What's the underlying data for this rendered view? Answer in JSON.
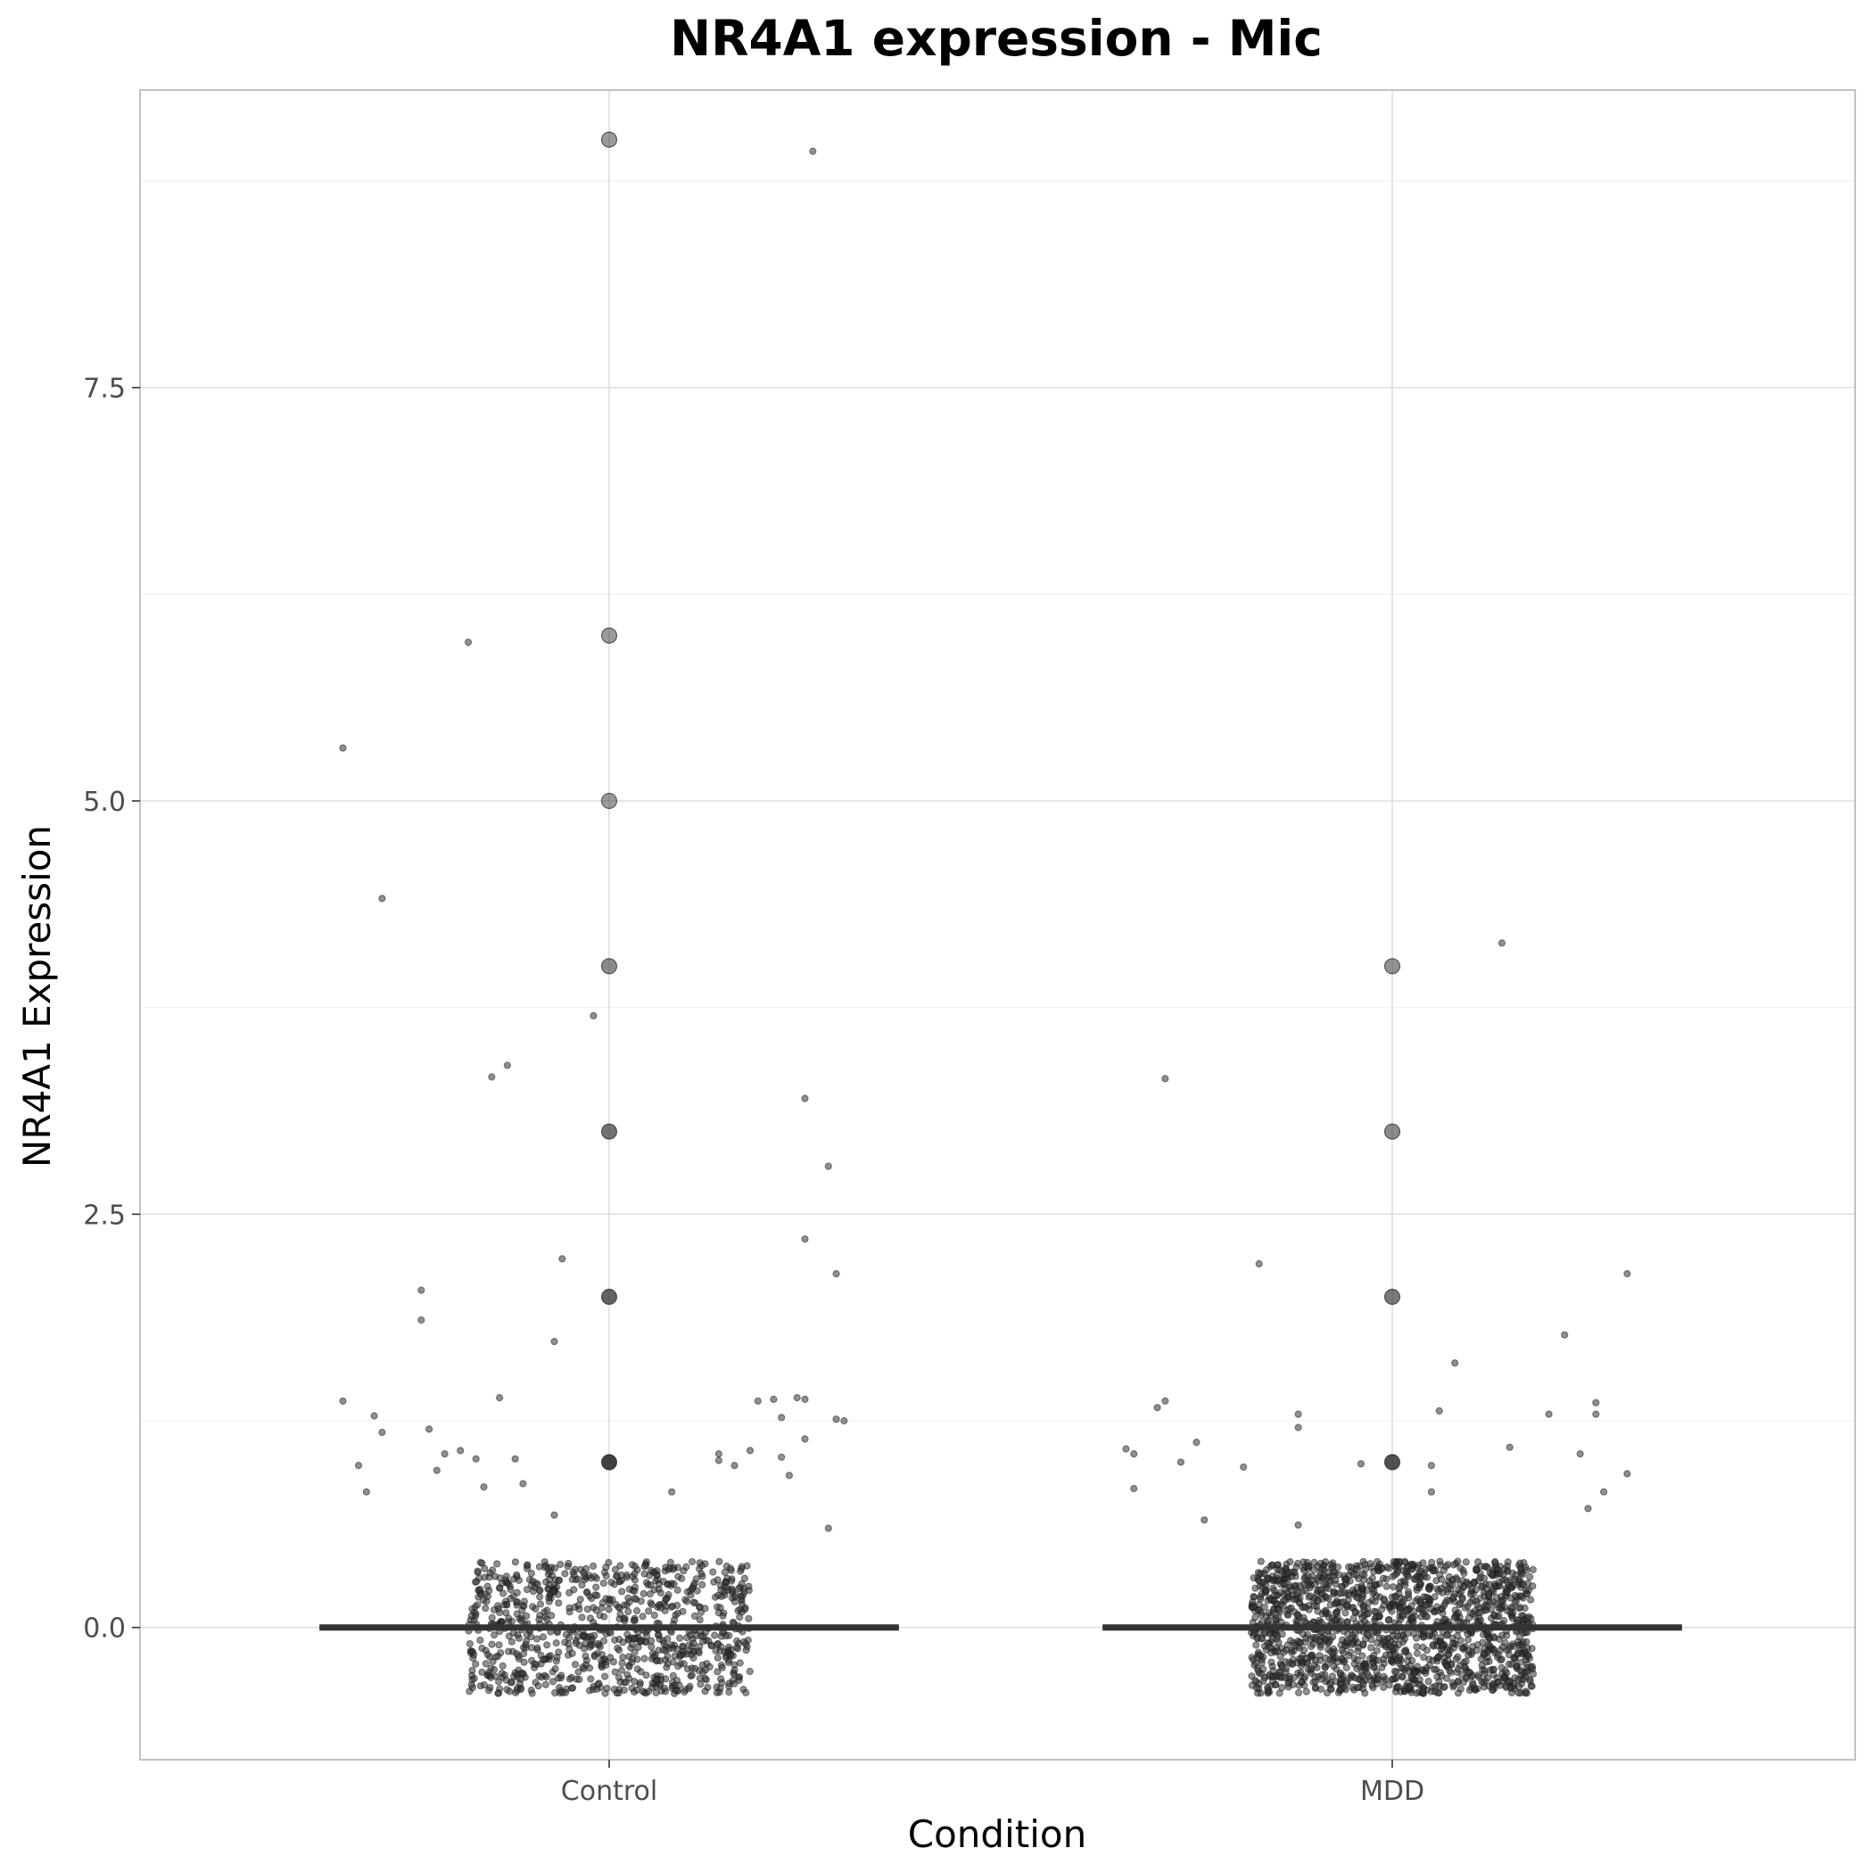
{
  "chart_data": {
    "type": "scatter",
    "title": "NR4A1 expression - Mic",
    "xlabel": "Condition",
    "ylabel": "NR4A1 Expression",
    "categories": [
      "Control",
      "MDD"
    ],
    "ylim": [
      -0.8,
      9.3
    ],
    "yticks": [
      0.0,
      2.5,
      5.0,
      7.5
    ],
    "ytick_labels": [
      "0.0",
      "2.5",
      "5.0",
      "7.5"
    ],
    "grid": true,
    "legend": "none",
    "point_color": "#333333",
    "median_color": "#333333",
    "series": [
      {
        "category": "Control",
        "median": 0,
        "count_points": [
          {
            "y": 0,
            "n": 900
          },
          {
            "y": 1,
            "n": 12
          },
          {
            "y": 2,
            "n": 8
          },
          {
            "y": 3,
            "n": 6
          },
          {
            "y": 4,
            "n": 3
          },
          {
            "y": 5,
            "n": 1
          },
          {
            "y": 6,
            "n": 1
          },
          {
            "y": 9,
            "n": 1
          }
        ],
        "jitter_points": [
          {
            "dx": -0.34,
            "y": 1.37
          },
          {
            "dx": -0.3,
            "y": 1.28
          },
          {
            "dx": -0.29,
            "y": 1.18
          },
          {
            "dx": -0.32,
            "y": 0.98
          },
          {
            "dx": -0.31,
            "y": 0.82
          },
          {
            "dx": -0.23,
            "y": 1.2
          },
          {
            "dx": -0.22,
            "y": 0.95
          },
          {
            "dx": -0.21,
            "y": 1.05
          },
          {
            "dx": -0.19,
            "y": 1.07
          },
          {
            "dx": -0.17,
            "y": 1.02
          },
          {
            "dx": -0.16,
            "y": 0.85
          },
          {
            "dx": -0.14,
            "y": 1.39
          },
          {
            "dx": -0.12,
            "y": 1.02
          },
          {
            "dx": -0.11,
            "y": 0.87
          },
          {
            "dx": -0.07,
            "y": 0.68
          },
          {
            "dx": -0.24,
            "y": 2.04
          },
          {
            "dx": -0.24,
            "y": 1.86
          },
          {
            "dx": -0.06,
            "y": 2.23
          },
          {
            "dx": -0.07,
            "y": 1.73
          },
          {
            "dx": -0.15,
            "y": 3.33
          },
          {
            "dx": -0.13,
            "y": 3.4
          },
          {
            "dx": -0.02,
            "y": 3.7
          },
          {
            "dx": -0.29,
            "y": 4.41
          },
          {
            "dx": -0.34,
            "y": 5.32
          },
          {
            "dx": -0.18,
            "y": 5.96
          },
          {
            "dx": 0.08,
            "y": 0.82
          },
          {
            "dx": 0.14,
            "y": 1.05
          },
          {
            "dx": 0.14,
            "y": 1.01
          },
          {
            "dx": 0.16,
            "y": 0.98
          },
          {
            "dx": 0.18,
            "y": 1.07
          },
          {
            "dx": 0.19,
            "y": 1.37
          },
          {
            "dx": 0.21,
            "y": 1.38
          },
          {
            "dx": 0.22,
            "y": 1.27
          },
          {
            "dx": 0.22,
            "y": 1.03
          },
          {
            "dx": 0.23,
            "y": 0.92
          },
          {
            "dx": 0.24,
            "y": 1.39
          },
          {
            "dx": 0.25,
            "y": 1.38
          },
          {
            "dx": 0.25,
            "y": 1.14
          },
          {
            "dx": 0.28,
            "y": 0.6
          },
          {
            "dx": 0.29,
            "y": 1.26
          },
          {
            "dx": 0.3,
            "y": 1.25
          },
          {
            "dx": 0.25,
            "y": 2.35
          },
          {
            "dx": 0.29,
            "y": 2.14
          },
          {
            "dx": 0.28,
            "y": 2.79
          },
          {
            "dx": 0.25,
            "y": 3.2
          },
          {
            "dx": 0.26,
            "y": 8.93
          }
        ]
      },
      {
        "category": "MDD",
        "median": 0,
        "count_points": [
          {
            "y": 0,
            "n": 1600
          },
          {
            "y": 1,
            "n": 10
          },
          {
            "y": 2,
            "n": 5
          },
          {
            "y": 3,
            "n": 3
          },
          {
            "y": 4,
            "n": 2
          }
        ],
        "jitter_points": [
          {
            "dx": -0.34,
            "y": 1.08
          },
          {
            "dx": -0.33,
            "y": 1.05
          },
          {
            "dx": -0.33,
            "y": 0.84
          },
          {
            "dx": -0.29,
            "y": 1.37
          },
          {
            "dx": -0.3,
            "y": 1.33
          },
          {
            "dx": -0.27,
            "y": 1.0
          },
          {
            "dx": -0.25,
            "y": 1.12
          },
          {
            "dx": -0.24,
            "y": 0.65
          },
          {
            "dx": -0.19,
            "y": 0.97
          },
          {
            "dx": -0.12,
            "y": 1.29
          },
          {
            "dx": -0.12,
            "y": 1.21
          },
          {
            "dx": -0.12,
            "y": 0.62
          },
          {
            "dx": -0.04,
            "y": 0.99
          },
          {
            "dx": 0.05,
            "y": 0.98
          },
          {
            "dx": 0.05,
            "y": 0.82
          },
          {
            "dx": 0.06,
            "y": 1.31
          },
          {
            "dx": 0.08,
            "y": 1.6
          },
          {
            "dx": 0.15,
            "y": 1.09
          },
          {
            "dx": 0.2,
            "y": 1.29
          },
          {
            "dx": 0.22,
            "y": 1.77
          },
          {
            "dx": 0.24,
            "y": 1.05
          },
          {
            "dx": 0.25,
            "y": 0.72
          },
          {
            "dx": 0.26,
            "y": 1.36
          },
          {
            "dx": 0.26,
            "y": 1.29
          },
          {
            "dx": 0.27,
            "y": 0.82
          },
          {
            "dx": 0.3,
            "y": 0.93
          },
          {
            "dx": 0.3,
            "y": 2.14
          },
          {
            "dx": -0.17,
            "y": 2.2
          },
          {
            "dx": -0.29,
            "y": 3.32
          },
          {
            "dx": 0.14,
            "y": 4.14
          }
        ]
      }
    ]
  }
}
